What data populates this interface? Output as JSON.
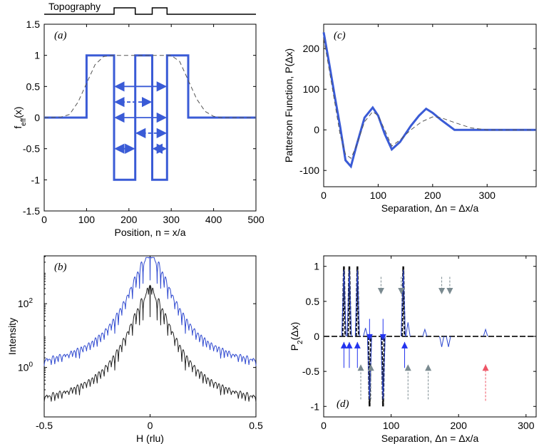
{
  "topography": {
    "label": "Topography",
    "profile": [
      [
        0,
        0
      ],
      [
        165,
        0
      ],
      [
        165,
        1
      ],
      [
        215,
        1
      ],
      [
        215,
        0
      ],
      [
        255,
        0
      ],
      [
        255,
        1
      ],
      [
        290,
        1
      ],
      [
        290,
        0
      ],
      [
        500,
        0
      ]
    ],
    "color": "#000000"
  },
  "chart_data": [
    {
      "id": "a",
      "type": "line",
      "tag": "(a)",
      "xlabel": "Position, n = x/a",
      "ylabel_main": "f",
      "ylabel_sub": "eff",
      "ylabel_tail": "(x)",
      "xlim": [
        0,
        500
      ],
      "ylim": [
        -1.5,
        1.5
      ],
      "xticks": [
        0,
        100,
        200,
        300,
        400,
        500
      ],
      "yticks": [
        -1.5,
        -1,
        -0.5,
        0,
        0.5,
        1,
        1.5
      ],
      "ytick_labels": [
        "-1.5",
        "-1",
        "-0.5",
        "0",
        "0.5",
        "1",
        "1.5"
      ],
      "series": [
        {
          "name": "f_eff",
          "color": "#3a5bd6",
          "style": "solid",
          "points": [
            [
              0,
              0
            ],
            [
              100,
              0
            ],
            [
              100,
              1
            ],
            [
              165,
              1
            ],
            [
              165,
              -1
            ],
            [
              215,
              -1
            ],
            [
              215,
              1
            ],
            [
              255,
              1
            ],
            [
              255,
              -1
            ],
            [
              290,
              -1
            ],
            [
              290,
              1
            ],
            [
              340,
              1
            ],
            [
              340,
              0
            ],
            [
              500,
              0
            ]
          ]
        },
        {
          "name": "smoothed",
          "color": "#555555",
          "style": "dashed",
          "points": [
            [
              0,
              0
            ],
            [
              40,
              0.01
            ],
            [
              60,
              0.05
            ],
            [
              80,
              0.25
            ],
            [
              100,
              0.55
            ],
            [
              120,
              0.85
            ],
            [
              140,
              0.98
            ],
            [
              160,
              1
            ],
            [
              300,
              1
            ],
            [
              320,
              0.9
            ],
            [
              340,
              0.6
            ],
            [
              360,
              0.3
            ],
            [
              380,
              0.1
            ],
            [
              400,
              0.02
            ],
            [
              420,
              0
            ],
            [
              500,
              0
            ]
          ]
        }
      ],
      "arrows": [
        {
          "x1": 165,
          "x2": 290,
          "y": 0.5,
          "style": "solid"
        },
        {
          "x1": 165,
          "x2": 255,
          "y": 0.25,
          "style": "dashed"
        },
        {
          "x1": 165,
          "x2": 290,
          "y": 0.0,
          "style": "solid"
        },
        {
          "x1": 215,
          "x2": 290,
          "y": -0.25,
          "style": "dashed"
        },
        {
          "x1": 165,
          "x2": 215,
          "y": -0.5,
          "style": "solid"
        },
        {
          "x1": 255,
          "x2": 290,
          "y": -0.5,
          "style": "solid"
        }
      ]
    },
    {
      "id": "c",
      "type": "line",
      "tag": "(c)",
      "xlabel": "Separation, Δn = Δx/a",
      "ylabel": "Patterson Function, P(Δx)",
      "xlim": [
        0,
        390
      ],
      "ylim": [
        -140,
        260
      ],
      "xticks": [
        0,
        100,
        200,
        300
      ],
      "yticks": [
        -100,
        0,
        100,
        200
      ],
      "series": [
        {
          "name": "P",
          "color": "#3a5bd6",
          "style": "solid",
          "points": [
            [
              0,
              240
            ],
            [
              10,
              165
            ],
            [
              20,
              85
            ],
            [
              30,
              10
            ],
            [
              40,
              -75
            ],
            [
              50,
              -90
            ],
            [
              60,
              -40
            ],
            [
              75,
              30
            ],
            [
              90,
              55
            ],
            [
              100,
              35
            ],
            [
              112,
              -10
            ],
            [
              125,
              -48
            ],
            [
              140,
              -30
            ],
            [
              160,
              10
            ],
            [
              175,
              35
            ],
            [
              188,
              52
            ],
            [
              200,
              42
            ],
            [
              215,
              25
            ],
            [
              240,
              0
            ],
            [
              390,
              0
            ]
          ]
        },
        {
          "name": "smoothed",
          "color": "#555555",
          "style": "dashed",
          "points": [
            [
              0,
              225
            ],
            [
              10,
              150
            ],
            [
              20,
              70
            ],
            [
              30,
              -10
            ],
            [
              40,
              -60
            ],
            [
              50,
              -70
            ],
            [
              60,
              -40
            ],
            [
              75,
              20
            ],
            [
              90,
              45
            ],
            [
              100,
              35
            ],
            [
              112,
              0
            ],
            [
              125,
              -40
            ],
            [
              140,
              -25
            ],
            [
              160,
              0
            ],
            [
              180,
              20
            ],
            [
              200,
              32
            ],
            [
              215,
              30
            ],
            [
              240,
              18
            ],
            [
              270,
              5
            ],
            [
              300,
              0
            ],
            [
              390,
              0
            ]
          ]
        }
      ]
    },
    {
      "id": "b",
      "type": "line",
      "tag": "(b)",
      "xlabel": "H (rlu)",
      "ylabel": "Intensity",
      "xlim": [
        -0.5,
        0.5
      ],
      "ylog_range": [
        -1.55,
        3.5
      ],
      "xticks": [
        -0.5,
        0,
        0.5
      ],
      "xtick_labels": [
        "-0.5",
        "0",
        "0.5"
      ],
      "yticks_exp": [
        0,
        2
      ],
      "ytick_base": "10",
      "series": [
        {
          "name": "intensity_blue",
          "color": "#2f49d0",
          "style": "solid",
          "offset": 0.85
        },
        {
          "name": "intensity_black",
          "color": "#222222",
          "style": "solid",
          "offset": 0.0
        }
      ]
    },
    {
      "id": "d",
      "type": "line",
      "tag": "(d)",
      "xlabel": "Separation, Δn = Δx/a",
      "ylabel_main": "P",
      "ylabel_sub": "2",
      "ylabel_tail": "(Δx)",
      "xlim": [
        0,
        315
      ],
      "ylim": [
        -1.15,
        1.15
      ],
      "xticks": [
        0,
        100,
        200,
        300
      ],
      "yticks": [
        -1,
        -0.5,
        0,
        0.5,
        1
      ],
      "ytick_labels": [
        "-1",
        "-0.5",
        "0",
        "0.5",
        "1"
      ],
      "black_peaks": [
        [
          30,
          1
        ],
        [
          38,
          1
        ],
        [
          50,
          1
        ],
        [
          68,
          -1
        ],
        [
          88,
          -1
        ],
        [
          118,
          1
        ]
      ],
      "blue_peaks": [
        [
          30,
          0.95
        ],
        [
          38,
          0.95
        ],
        [
          50,
          0.95
        ],
        [
          62,
          0.12
        ],
        [
          68,
          -0.9
        ],
        [
          88,
          -0.9
        ],
        [
          118,
          0.95
        ],
        [
          125,
          0.2
        ],
        [
          150,
          0.1
        ],
        [
          175,
          -0.15
        ],
        [
          185,
          -0.15
        ],
        [
          240,
          0.1
        ]
      ],
      "arrows": [
        {
          "x": 30,
          "dir": "up",
          "color": "#2233ee",
          "y1": -0.45,
          "y2": -0.08
        },
        {
          "x": 38,
          "dir": "up",
          "color": "#2233ee",
          "y1": -0.45,
          "y2": -0.08
        },
        {
          "x": 50,
          "dir": "up",
          "color": "#2233ee",
          "y1": -0.45,
          "y2": -0.08
        },
        {
          "x": 120,
          "dir": "up",
          "color": "#2233ee",
          "y1": -0.45,
          "y2": -0.08
        },
        {
          "x": 68,
          "dir": "down",
          "color": "#2233ee",
          "y1": 0.25,
          "y2": -0.06
        },
        {
          "x": 88,
          "dir": "down",
          "color": "#2233ee",
          "y1": 0.25,
          "y2": -0.06
        },
        {
          "x": 55,
          "dir": "up",
          "color": "#7a8a90",
          "y1": -0.9,
          "y2": -0.4
        },
        {
          "x": 70,
          "dir": "up",
          "color": "#7a8a90",
          "y1": -0.9,
          "y2": -0.4
        },
        {
          "x": 125,
          "dir": "up",
          "color": "#7a8a90",
          "y1": -0.9,
          "y2": -0.4
        },
        {
          "x": 155,
          "dir": "up",
          "color": "#7a8a90",
          "y1": -0.9,
          "y2": -0.4
        },
        {
          "x": 85,
          "dir": "down",
          "color": "#7a8a90",
          "y1": 0.85,
          "y2": 0.6
        },
        {
          "x": 115,
          "dir": "down",
          "color": "#7a8a90",
          "y1": 0.85,
          "y2": 0.6
        },
        {
          "x": 175,
          "dir": "down",
          "color": "#7a8a90",
          "y1": 0.85,
          "y2": 0.6
        },
        {
          "x": 187,
          "dir": "down",
          "color": "#7a8a90",
          "y1": 0.85,
          "y2": 0.6
        },
        {
          "x": 240,
          "dir": "up",
          "color": "#ee5566",
          "y1": -0.92,
          "y2": -0.4
        }
      ]
    }
  ]
}
